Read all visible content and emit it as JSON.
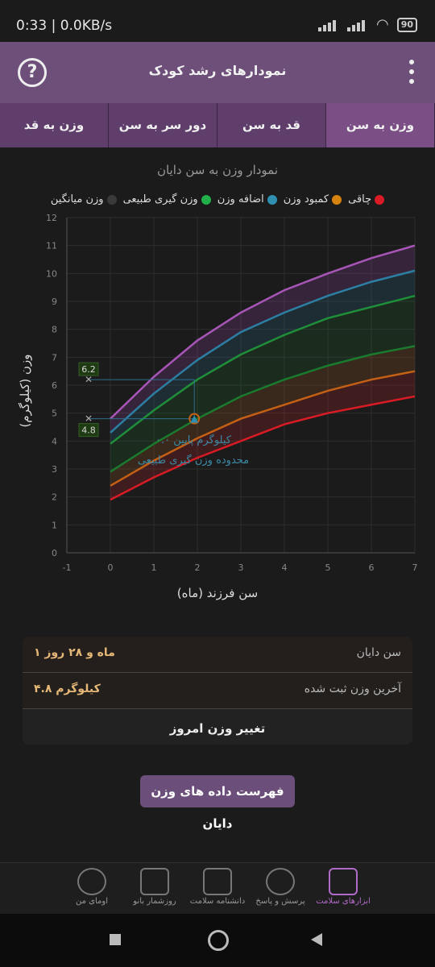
{
  "status": {
    "time_net": "0:33 | 0.0KB/s",
    "battery": "90"
  },
  "appbar": {
    "title": "نمودارهای رشد کودک",
    "help_glyph": "?"
  },
  "tabs": [
    {
      "label": "وزن به سن",
      "active": true
    },
    {
      "label": "قد به سن"
    },
    {
      "label": "دور سر به سن"
    },
    {
      "label": "وزن به قد"
    }
  ],
  "legend": [
    {
      "label": "چاقی",
      "color": "#d81b24"
    },
    {
      "label": "کمبود وزن",
      "color": "#d5820e"
    },
    {
      "label": "اضافه وزن",
      "color": "#2f8fb0"
    },
    {
      "label": "وزن گیری طبیعی",
      "color": "#22b04b"
    },
    {
      "label": "وزن میانگین",
      "color": "#3a3a3a"
    }
  ],
  "chart_data": {
    "type": "line",
    "title": "نمودار وزن به سن دایان",
    "xlabel": "سن فرزند (ماه)",
    "ylabel": "وزن (کیلوگرم)",
    "xlim": [
      -1,
      7
    ],
    "ylim": [
      0,
      12
    ],
    "x_ticks": [
      "-1",
      "0",
      "1",
      "2",
      "3",
      "4",
      "5",
      "6",
      "7"
    ],
    "y_ticks": [
      "0",
      "1",
      "2",
      "3",
      "4",
      "5",
      "6",
      "7",
      "8",
      "9",
      "10",
      "11",
      "12"
    ],
    "x": [
      0,
      1,
      2,
      3,
      4,
      5,
      6,
      7
    ],
    "series": [
      {
        "color": "#a855b8",
        "values": [
          4.8,
          6.3,
          7.6,
          8.6,
          9.4,
          10.0,
          10.55,
          11.0
        ]
      },
      {
        "color": "#2c7fa3",
        "values": [
          4.3,
          5.7,
          6.9,
          7.9,
          8.6,
          9.2,
          9.7,
          10.1
        ]
      },
      {
        "color": "#1f8f3a",
        "values": [
          3.9,
          5.1,
          6.2,
          7.1,
          7.8,
          8.4,
          8.8,
          9.2
        ]
      },
      {
        "color": "#1a7a2d",
        "values": [
          2.9,
          3.9,
          4.8,
          5.6,
          6.2,
          6.7,
          7.1,
          7.4
        ]
      },
      {
        "color": "#c46016",
        "values": [
          2.4,
          3.3,
          4.1,
          4.8,
          5.3,
          5.8,
          6.2,
          6.5
        ]
      },
      {
        "color": "#d81b24",
        "values": [
          1.9,
          2.7,
          3.4,
          4.0,
          4.6,
          5.0,
          5.3,
          5.6
        ]
      }
    ],
    "markers": [
      {
        "label": "6.2",
        "x": -0.5,
        "y": 6.2
      },
      {
        "label": "4.8",
        "x": -0.5,
        "y": 4.8
      }
    ],
    "current_point": {
      "x": 1.93,
      "y": 4.8
    },
    "annotation_lines": [
      "۰.۰ کیلوگرم پایین",
      "محدوده وزن گیری طبیعی"
    ]
  },
  "info": {
    "age_label": "سن دایان",
    "age_value": "۱ ماه و ۲۸ روز",
    "weight_label": "آخرین وزن ثبت شده",
    "weight_value": "۴.۸ کیلوگرم",
    "change_label": "تغییر وزن امروز"
  },
  "list_button": "فهرست داده های وزن دایان",
  "bottom_nav": [
    {
      "label": "اومای من"
    },
    {
      "label": "روزشمار بانو"
    },
    {
      "label": "دانشنامه سلامت"
    },
    {
      "label": "پرسش و پاسخ"
    },
    {
      "label": "ابزارهای سلامت",
      "active": true
    }
  ]
}
